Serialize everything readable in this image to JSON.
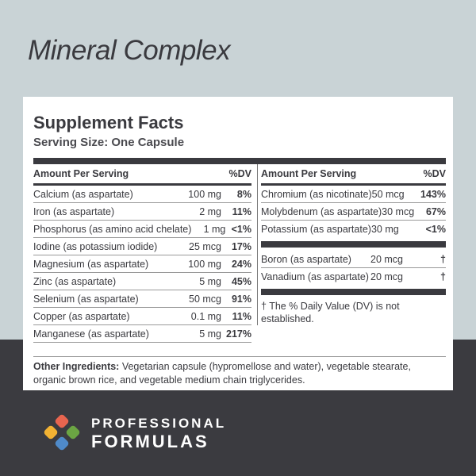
{
  "product_title": "Mineral Complex",
  "label": {
    "heading": "Supplement Facts",
    "serving_size": "Serving Size: One Capsule",
    "col_header_amount": "Amount Per Serving",
    "col_header_dv": "%DV",
    "left_rows": [
      {
        "name": "Calcium (as aspartate)",
        "amount": "100 mg",
        "dv": "8%"
      },
      {
        "name": "Iron (as aspartate)",
        "amount": "2 mg",
        "dv": "11%"
      },
      {
        "name": "Phosphorus (as amino acid chelate)",
        "amount": "1 mg",
        "dv": "<1%"
      },
      {
        "name": "Iodine (as potassium iodide)",
        "amount": "25 mcg",
        "dv": "17%"
      },
      {
        "name": "Magnesium (as aspartate)",
        "amount": "100 mg",
        "dv": "24%"
      },
      {
        "name": "Zinc (as aspartate)",
        "amount": "5 mg",
        "dv": "45%"
      },
      {
        "name": "Selenium (as aspartate)",
        "amount": "50 mcg",
        "dv": "91%"
      },
      {
        "name": "Copper (as aspartate)",
        "amount": "0.1 mg",
        "dv": "11%"
      },
      {
        "name": "Manganese (as aspartate)",
        "amount": "5 mg",
        "dv": "217%"
      }
    ],
    "right_rows": [
      {
        "name": "Chromium (as nicotinate)",
        "amount": "50 mcg",
        "dv": "143%"
      },
      {
        "name": "Molybdenum (as aspartate)",
        "amount": "30 mcg",
        "dv": "67%"
      },
      {
        "name": "Potassium (as aspartate)",
        "amount": "30 mg",
        "dv": "<1%"
      }
    ],
    "right_rows_2": [
      {
        "name": "Boron (as aspartate)",
        "amount": "20 mcg",
        "dv": "†"
      },
      {
        "name": "Vanadium (as aspartate)",
        "amount": "20 mcg",
        "dv": "†"
      }
    ],
    "footnote": "† The % Daily Value (DV) is not established.",
    "other_label": "Other Ingredients:",
    "other_text": " Vegetarian capsule (hypromellose and water), vegetable stearate, organic brown rice, and vegetable medium chain triglycerides."
  },
  "brand": {
    "line1": "PROFESSIONAL",
    "line2": "FORMULAS",
    "colors": [
      "#e8654f",
      "#6ba543",
      "#4f8ac9",
      "#f2b233"
    ]
  }
}
